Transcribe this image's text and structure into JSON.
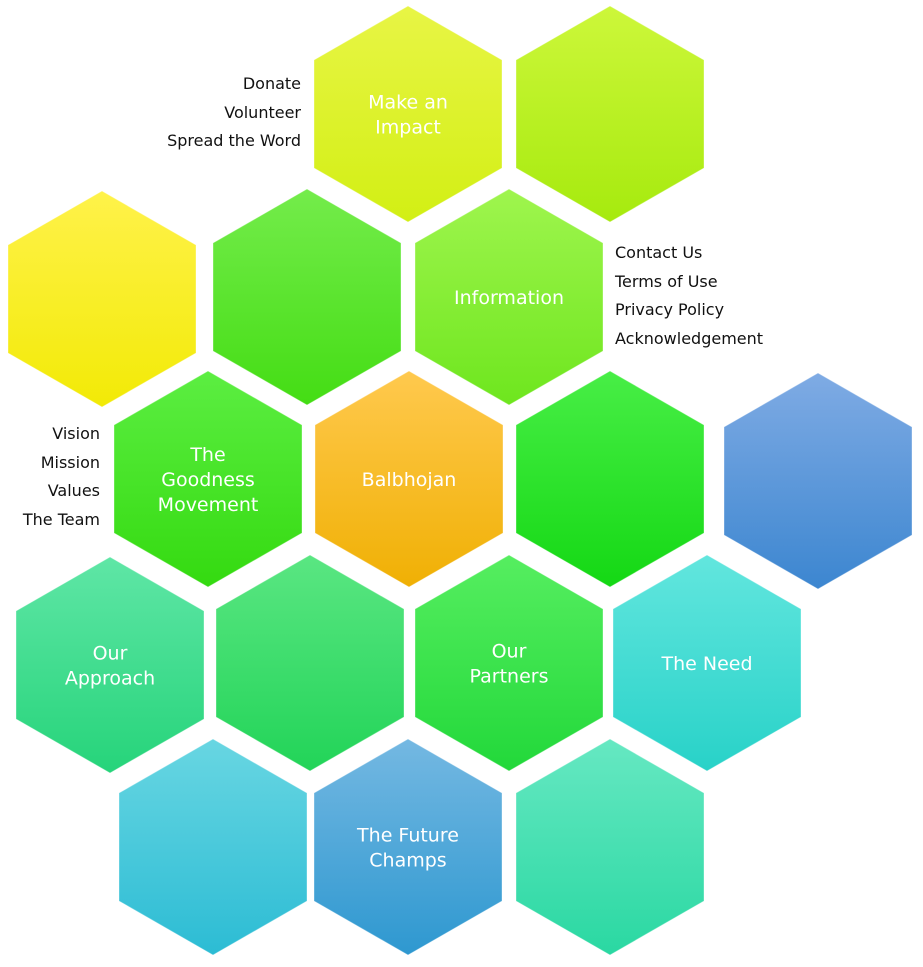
{
  "hexagons": [
    {
      "id": "make-an-impact",
      "label_lines": [
        "Make an",
        "Impact"
      ],
      "gradient": [
        "#e8f545",
        "#d2ef14"
      ]
    },
    {
      "id": "blank-top-right",
      "label_lines": [],
      "gradient": [
        "#cdf73a",
        "#a6ea0e"
      ]
    },
    {
      "id": "blank-yellow",
      "label_lines": [],
      "gradient": [
        "#fff24a",
        "#f2ea06"
      ]
    },
    {
      "id": "blank-green-1",
      "label_lines": [],
      "gradient": [
        "#74ec4b",
        "#44dd14"
      ]
    },
    {
      "id": "information",
      "label_lines": [
        "Information"
      ],
      "gradient": [
        "#9ff54e",
        "#6ee61e"
      ]
    },
    {
      "id": "the-goodness-movement",
      "label_lines": [
        "The",
        "Goodness",
        "Movement"
      ],
      "gradient": [
        "#5cee42",
        "#34da10"
      ]
    },
    {
      "id": "balbhojan",
      "label_lines": [
        "Balbhojan"
      ],
      "gradient": [
        "#ffc94e",
        "#f0b004"
      ]
    },
    {
      "id": "blank-green-2",
      "label_lines": [],
      "gradient": [
        "#48ee46",
        "#14d814"
      ]
    },
    {
      "id": "blank-blue",
      "label_lines": [],
      "gradient": [
        "#7fabe4",
        "#3c86d0"
      ]
    },
    {
      "id": "our-approach",
      "label_lines": [
        "Our",
        "Approach"
      ],
      "gradient": [
        "#5fe6a6",
        "#26d47a"
      ]
    },
    {
      "id": "blank-green-3",
      "label_lines": [],
      "gradient": [
        "#5ae682",
        "#22d458"
      ]
    },
    {
      "id": "our-partners",
      "label_lines": [
        "Our",
        "Partners"
      ],
      "gradient": [
        "#56ee60",
        "#22d83a"
      ]
    },
    {
      "id": "the-need",
      "label_lines": [
        "The Need"
      ],
      "gradient": [
        "#62e6de",
        "#28d2c8"
      ]
    },
    {
      "id": "blank-cyan",
      "label_lines": [],
      "gradient": [
        "#68d6e2",
        "#2cbcd4"
      ]
    },
    {
      "id": "the-future-champs",
      "label_lines": [
        "The Future",
        "Champs"
      ],
      "gradient": [
        "#74b8e2",
        "#2e98d0"
      ]
    },
    {
      "id": "blank-teal",
      "label_lines": [],
      "gradient": [
        "#66e8c2",
        "#2ad8a2"
      ]
    }
  ],
  "lists": {
    "make_an_impact": [
      "Donate",
      "Volunteer",
      "Spread the Word"
    ],
    "information": [
      "Contact Us",
      "Terms of Use",
      "Privacy Policy",
      "Acknowledgement"
    ],
    "goodness_movement": [
      "Vision",
      "Mission",
      "Values",
      "The Team"
    ]
  }
}
